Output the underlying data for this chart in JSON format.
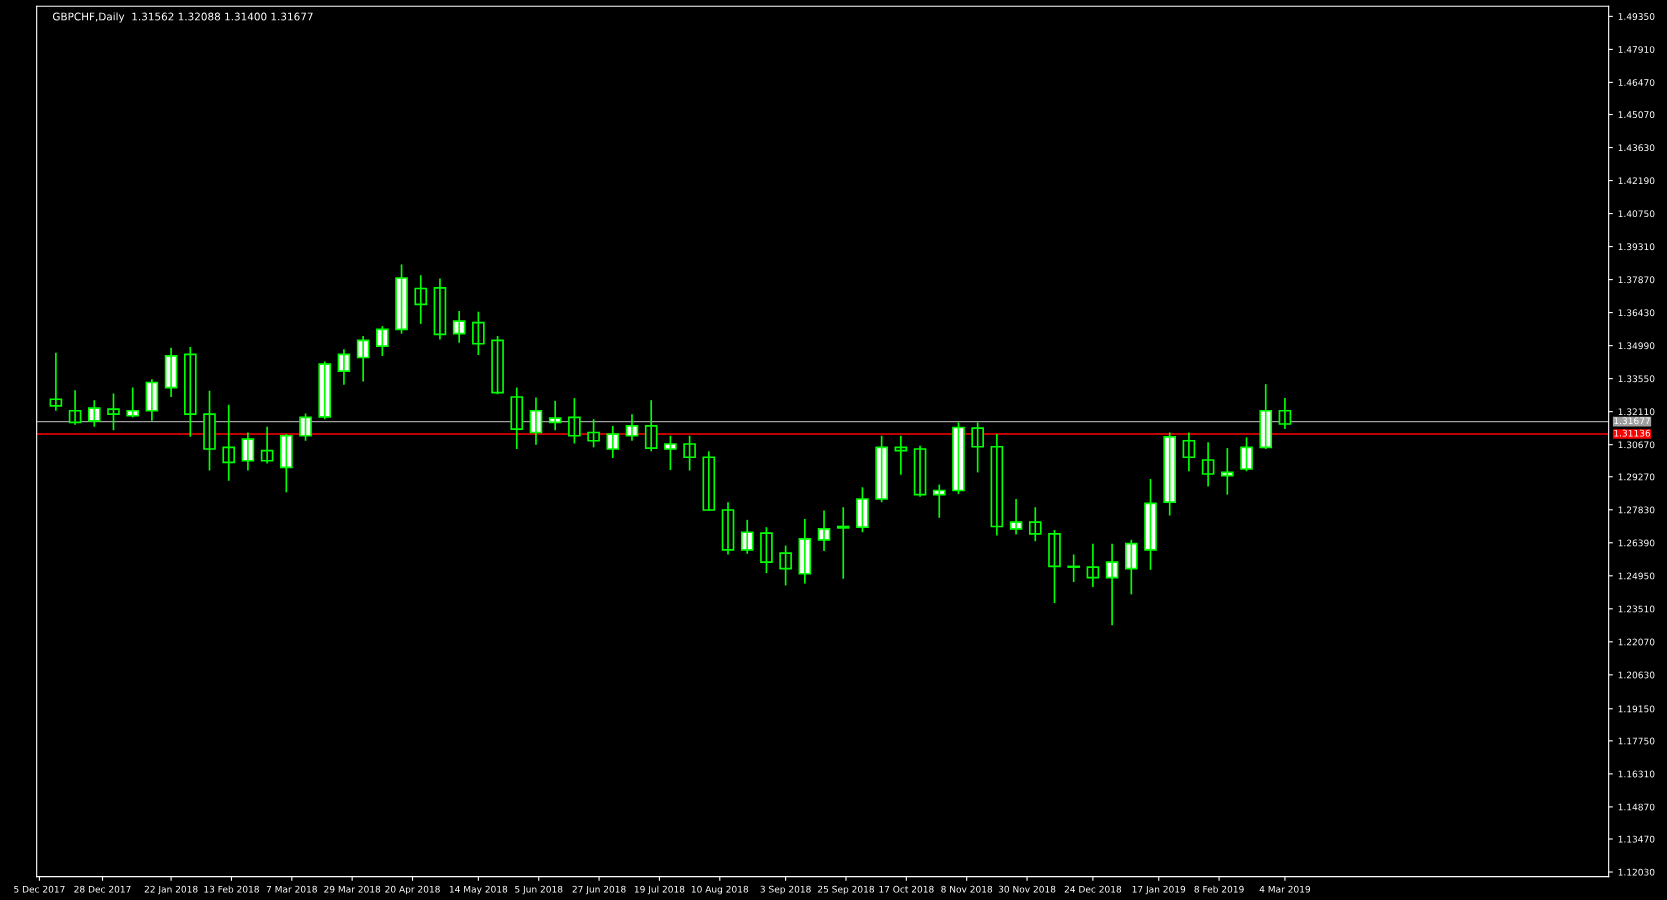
{
  "chart_data": {
    "type": "candlestick",
    "title": "GBPCHF,Daily  1.31562 1.32088 1.31400 1.31677",
    "color": "#00ff00",
    "x": [
      "2017-12-11",
      "2017-12-18",
      "2017-12-25",
      "2018-01-01",
      "2018-01-08",
      "2018-01-15",
      "2018-01-22",
      "2018-01-29",
      "2018-02-05",
      "2018-02-12",
      "2018-02-19",
      "2018-02-26",
      "2018-03-05",
      "2018-03-12",
      "2018-03-19",
      "2018-03-26",
      "2018-04-02",
      "2018-04-09",
      "2018-04-16",
      "2018-04-23",
      "2018-04-30",
      "2018-05-07",
      "2018-05-14",
      "2018-05-21",
      "2018-05-28",
      "2018-06-04",
      "2018-06-11",
      "2018-06-18",
      "2018-06-25",
      "2018-07-02",
      "2018-07-09",
      "2018-07-16",
      "2018-07-23",
      "2018-07-30",
      "2018-08-06",
      "2018-08-13",
      "2018-08-20",
      "2018-08-27",
      "2018-09-03",
      "2018-09-10",
      "2018-09-17",
      "2018-09-24",
      "2018-10-01",
      "2018-10-08",
      "2018-10-15",
      "2018-10-22",
      "2018-10-29",
      "2018-11-05",
      "2018-11-12",
      "2018-11-19",
      "2018-11-26",
      "2018-12-03",
      "2018-12-10",
      "2018-12-17",
      "2018-12-24",
      "2018-12-31",
      "2019-01-07",
      "2019-01-14",
      "2019-01-21",
      "2019-01-28",
      "2019-02-04",
      "2019-02-11",
      "2019-02-18",
      "2019-02-25",
      "2019-03-04"
    ],
    "ohlc": [
      [
        1.3265,
        1.3468,
        1.3215,
        1.3236
      ],
      [
        1.3215,
        1.3304,
        1.3154,
        1.3164
      ],
      [
        1.3171,
        1.3261,
        1.3145,
        1.3226
      ],
      [
        1.3222,
        1.329,
        1.313,
        1.32
      ],
      [
        1.3193,
        1.3316,
        1.3186,
        1.3215
      ],
      [
        1.3215,
        1.3352,
        1.3171,
        1.3338
      ],
      [
        1.3316,
        1.349,
        1.3275,
        1.3454
      ],
      [
        1.3461,
        1.3493,
        1.3101,
        1.32
      ],
      [
        1.32,
        1.3302,
        1.2954,
        1.3048
      ],
      [
        1.3055,
        1.3241,
        1.291,
        1.299
      ],
      [
        1.2997,
        1.312,
        1.2954,
        1.3091
      ],
      [
        1.3041,
        1.3145,
        1.2985,
        1.2997
      ],
      [
        1.2968,
        1.3113,
        1.2859,
        1.3106
      ],
      [
        1.3106,
        1.3203,
        1.3084,
        1.3186
      ],
      [
        1.3188,
        1.343,
        1.3178,
        1.3418
      ],
      [
        1.3388,
        1.3483,
        1.3328,
        1.3461
      ],
      [
        1.3447,
        1.3541,
        1.3342,
        1.3522
      ],
      [
        1.3497,
        1.3584,
        1.3454,
        1.357
      ],
      [
        1.357,
        1.3853,
        1.3551,
        1.3794
      ],
      [
        1.3748,
        1.3806,
        1.3594,
        1.3679
      ],
      [
        1.3751,
        1.3792,
        1.3526,
        1.3548
      ],
      [
        1.3551,
        1.365,
        1.3512,
        1.3606
      ],
      [
        1.3599,
        1.3647,
        1.3458,
        1.3507
      ],
      [
        1.3522,
        1.3541,
        1.3287,
        1.3294
      ],
      [
        1.3275,
        1.3316,
        1.3048,
        1.3135
      ],
      [
        1.312,
        1.3273,
        1.3067,
        1.3215
      ],
      [
        1.3164,
        1.3258,
        1.313,
        1.3183
      ],
      [
        1.3186,
        1.327,
        1.3072,
        1.3106
      ],
      [
        1.312,
        1.3178,
        1.3055,
        1.3084
      ],
      [
        1.3048,
        1.3149,
        1.3009,
        1.3113
      ],
      [
        1.3106,
        1.32,
        1.3084,
        1.3149
      ],
      [
        1.3149,
        1.3261,
        1.3038,
        1.3052
      ],
      [
        1.3048,
        1.3106,
        1.2956,
        1.307
      ],
      [
        1.307,
        1.3106,
        1.2954,
        1.3012
      ],
      [
        1.3012,
        1.3038,
        1.278,
        1.2782
      ],
      [
        1.2782,
        1.2816,
        1.2588,
        1.2608
      ],
      [
        1.2608,
        1.2739,
        1.2591,
        1.2685
      ],
      [
        1.2681,
        1.2707,
        1.2507,
        1.2555
      ],
      [
        1.2594,
        1.2627,
        1.2453,
        1.2526
      ],
      [
        1.2504,
        1.2743,
        1.2461,
        1.2656
      ],
      [
        1.2652,
        1.278,
        1.2603,
        1.27
      ],
      [
        1.2704,
        1.2794,
        1.2482,
        1.271
      ],
      [
        1.2707,
        1.2881,
        1.2685,
        1.283
      ],
      [
        1.283,
        1.3106,
        1.2816,
        1.3055
      ],
      [
        1.3055,
        1.3106,
        1.2936,
        1.3041
      ],
      [
        1.3048,
        1.3062,
        1.284,
        1.2849
      ],
      [
        1.2849,
        1.2893,
        1.2748,
        1.2867
      ],
      [
        1.2867,
        1.3164,
        1.2852,
        1.3142
      ],
      [
        1.3139,
        1.3164,
        1.2946,
        1.3058
      ],
      [
        1.3058,
        1.3113,
        1.2671,
        1.271
      ],
      [
        1.27,
        1.283,
        1.2675,
        1.2729
      ],
      [
        1.2729,
        1.2794,
        1.2646,
        1.2678
      ],
      [
        1.2678,
        1.2695,
        1.2376,
        1.2536
      ],
      [
        1.2536,
        1.2588,
        1.2468,
        1.2533
      ],
      [
        1.2533,
        1.2635,
        1.2446,
        1.2487
      ],
      [
        1.2487,
        1.2635,
        1.2279,
        1.2555
      ],
      [
        1.2526,
        1.2652,
        1.2414,
        1.2635
      ],
      [
        1.2608,
        1.2917,
        1.2521,
        1.2811
      ],
      [
        1.2816,
        1.312,
        1.2758,
        1.3101
      ],
      [
        1.3084,
        1.312,
        1.2951,
        1.3012
      ],
      [
        1.3,
        1.3077,
        1.2884,
        1.2939
      ],
      [
        1.2932,
        1.3052,
        1.2849,
        1.2946
      ],
      [
        1.2961,
        1.3099,
        1.2951,
        1.3055
      ],
      [
        1.3055,
        1.3331,
        1.3048,
        1.3215
      ],
      [
        1.3215,
        1.327,
        1.3135,
        1.3157
      ]
    ],
    "xlim": [
      "2017-12-04",
      "2019-06-30"
    ],
    "xticks": [
      {
        "value": "2017-12-05",
        "label": "5 Dec 2017"
      },
      {
        "value": "2017-12-28",
        "label": "28 Dec 2017"
      },
      {
        "value": "2018-01-22",
        "label": "22 Jan 2018"
      },
      {
        "value": "2018-02-13",
        "label": "13 Feb 2018"
      },
      {
        "value": "2018-03-07",
        "label": "7 Mar 2018"
      },
      {
        "value": "2018-03-29",
        "label": "29 Mar 2018"
      },
      {
        "value": "2018-04-20",
        "label": "20 Apr 2018"
      },
      {
        "value": "2018-05-14",
        "label": "14 May 2018"
      },
      {
        "value": "2018-06-05",
        "label": "5 Jun 2018"
      },
      {
        "value": "2018-06-27",
        "label": "27 Jun 2018"
      },
      {
        "value": "2018-07-19",
        "label": "19 Jul 2018"
      },
      {
        "value": "2018-08-10",
        "label": "10 Aug 2018"
      },
      {
        "value": "2018-09-03",
        "label": "3 Sep 2018"
      },
      {
        "value": "2018-09-25",
        "label": "25 Sep 2018"
      },
      {
        "value": "2018-10-17",
        "label": "17 Oct 2018"
      },
      {
        "value": "2018-11-08",
        "label": "8 Nov 2018"
      },
      {
        "value": "2018-11-30",
        "label": "30 Nov 2018"
      },
      {
        "value": "2018-12-24",
        "label": "24 Dec 2018"
      },
      {
        "value": "2019-01-17",
        "label": "17 Jan 2019"
      },
      {
        "value": "2019-02-08",
        "label": "8 Feb 2019"
      },
      {
        "value": "2019-03-04",
        "label": "4 Mar 2019"
      }
    ],
    "ylim": [
      1.1183,
      1.4979
    ],
    "yticks": [
      {
        "value": 1.1203,
        "label": "1.12030"
      },
      {
        "value": 1.1347,
        "label": "1.13470"
      },
      {
        "value": 1.1487,
        "label": "1.14870"
      },
      {
        "value": 1.1631,
        "label": "1.16310"
      },
      {
        "value": 1.1775,
        "label": "1.17750"
      },
      {
        "value": 1.1915,
        "label": "1.19150"
      },
      {
        "value": 1.2063,
        "label": "1.20630"
      },
      {
        "value": 1.2207,
        "label": "1.22070"
      },
      {
        "value": 1.2351,
        "label": "1.23510"
      },
      {
        "value": 1.2495,
        "label": "1.24950"
      },
      {
        "value": 1.2639,
        "label": "1.26390"
      },
      {
        "value": 1.2783,
        "label": "1.27830"
      },
      {
        "value": 1.2927,
        "label": "1.29270"
      },
      {
        "value": 1.3067,
        "label": "1.30670"
      },
      {
        "value": 1.3211,
        "label": "1.32110"
      },
      {
        "value": 1.3355,
        "label": "1.33550"
      },
      {
        "value": 1.3499,
        "label": "1.34990"
      },
      {
        "value": 1.3643,
        "label": "1.36430"
      },
      {
        "value": 1.3787,
        "label": "1.37870"
      },
      {
        "value": 1.3931,
        "label": "1.39310"
      },
      {
        "value": 1.4075,
        "label": "1.40750"
      },
      {
        "value": 1.4219,
        "label": "1.42190"
      },
      {
        "value": 1.4363,
        "label": "1.43630"
      },
      {
        "value": 1.4507,
        "label": "1.45070"
      },
      {
        "value": 1.4647,
        "label": "1.46470"
      },
      {
        "value": 1.4791,
        "label": "1.47910"
      },
      {
        "value": 1.4935,
        "label": "1.49350"
      }
    ],
    "ref_lines": [
      {
        "axis": "y",
        "value": 1.31677,
        "label": "1.31677",
        "color": "#a0a0a0"
      },
      {
        "axis": "y",
        "value": 1.31136,
        "label": "1.31136",
        "color": "#ff0000"
      }
    ]
  }
}
